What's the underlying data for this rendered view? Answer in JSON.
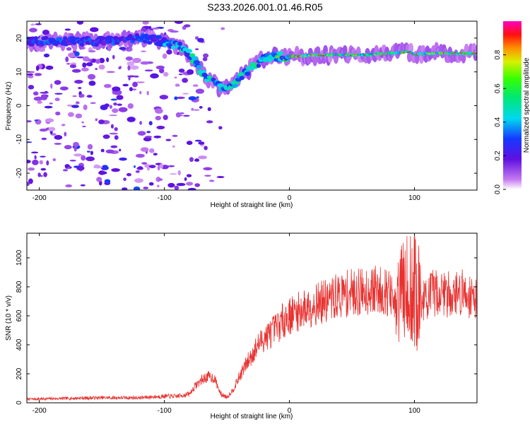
{
  "figure_title": "S233.2026.001.01.46.R05",
  "colors": {
    "snr_line": "#e8312f",
    "axis": "#000000",
    "background": "#ffffff"
  },
  "chart_data": [
    {
      "type": "heatmap",
      "xlabel": "Height of straight line (km)",
      "ylabel": "Frequency (Hz)",
      "xlim": [
        -210,
        150
      ],
      "ylim": [
        -25,
        25
      ],
      "x_ticks": [
        -200,
        -100,
        0,
        100
      ],
      "y_ticks": [
        -20,
        -10,
        0,
        10,
        20
      ],
      "colorbar": {
        "label": "Normalized spectral amplitude",
        "range": [
          0,
          1
        ],
        "ticks": [
          0.0,
          0.2,
          0.4,
          0.6,
          0.8
        ]
      },
      "ridge": {
        "description_x_km": [
          -210,
          -180,
          -150,
          -120,
          -100,
          -90,
          -80,
          -72,
          -65,
          -58,
          -52,
          -45,
          -40,
          -35,
          -28,
          -20,
          -10,
          0,
          20,
          40,
          60,
          80,
          95,
          100,
          110,
          150
        ],
        "frequency_hz": [
          19,
          19,
          19,
          20,
          19,
          18,
          15,
          11,
          8,
          6,
          5,
          6,
          8,
          10,
          12,
          14,
          14.5,
          14.5,
          15,
          15,
          15,
          15.5,
          16,
          15,
          15.5,
          15.5
        ]
      }
    },
    {
      "type": "line",
      "xlabel": "Height of straight line (km)",
      "ylabel": "SNR (10 * v/v)",
      "xlim": [
        -210,
        150
      ],
      "ylim": [
        0,
        1170
      ],
      "x_ticks": [
        -200,
        -100,
        0,
        100
      ],
      "y_ticks": [
        0,
        200,
        400,
        600,
        800,
        1000
      ],
      "series": [
        {
          "name": "SNR",
          "x": [
            -210,
            -180,
            -150,
            -120,
            -100,
            -90,
            -80,
            -75,
            -70,
            -65,
            -60,
            -55,
            -50,
            -45,
            -40,
            -35,
            -30,
            -25,
            -20,
            -15,
            -10,
            -5,
            0,
            10,
            20,
            30,
            40,
            50,
            60,
            70,
            80,
            85,
            90,
            95,
            100,
            105,
            110,
            115,
            120,
            130,
            140,
            150
          ],
          "values": [
            25,
            30,
            35,
            35,
            45,
            45,
            60,
            120,
            160,
            180,
            170,
            60,
            40,
            90,
            180,
            260,
            330,
            400,
            450,
            480,
            520,
            570,
            600,
            640,
            680,
            700,
            740,
            760,
            770,
            780,
            760,
            640,
            780,
            600,
            760,
            700,
            720,
            760,
            760,
            750,
            760,
            720
          ]
        }
      ]
    }
  ]
}
